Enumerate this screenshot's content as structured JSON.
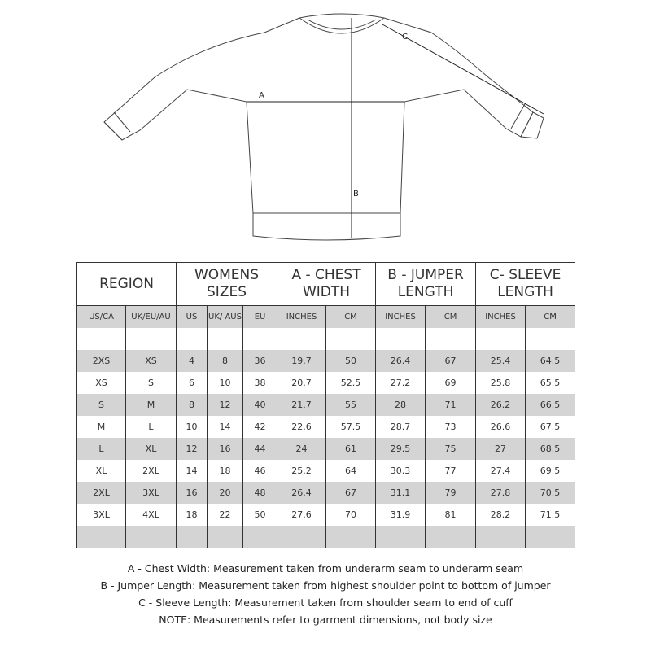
{
  "diagram": {
    "labels": {
      "a": "A",
      "b": "B",
      "c": "C"
    }
  },
  "table": {
    "groups": [
      "REGION",
      "WOMENS SIZES",
      "A - CHEST WIDTH",
      "B - JUMPER LENGTH",
      "C- SLEEVE LENGTH"
    ],
    "subheaders": [
      "US/CA",
      "UK/EU/AU",
      "US",
      "UK/ AUS",
      "EU",
      "INCHES",
      "CM",
      "INCHES",
      "CM",
      "INCHES",
      "CM"
    ],
    "rows": [
      [
        "2XS",
        "XS",
        "4",
        "8",
        "36",
        "19.7",
        "50",
        "26.4",
        "67",
        "25.4",
        "64.5"
      ],
      [
        "XS",
        "S",
        "6",
        "10",
        "38",
        "20.7",
        "52.5",
        "27.2",
        "69",
        "25.8",
        "65.5"
      ],
      [
        "S",
        "M",
        "8",
        "12",
        "40",
        "21.7",
        "55",
        "28",
        "71",
        "26.2",
        "66.5"
      ],
      [
        "M",
        "L",
        "10",
        "14",
        "42",
        "22.6",
        "57.5",
        "28.7",
        "73",
        "26.6",
        "67.5"
      ],
      [
        "L",
        "XL",
        "12",
        "16",
        "44",
        "24",
        "61",
        "29.5",
        "75",
        "27",
        "68.5"
      ],
      [
        "XL",
        "2XL",
        "14",
        "18",
        "46",
        "25.2",
        "64",
        "30.3",
        "77",
        "27.4",
        "69.5"
      ],
      [
        "2XL",
        "3XL",
        "16",
        "20",
        "48",
        "26.4",
        "67",
        "31.1",
        "79",
        "27.8",
        "70.5"
      ],
      [
        "3XL",
        "4XL",
        "18",
        "22",
        "50",
        "27.6",
        "70",
        "31.9",
        "81",
        "28.2",
        "71.5"
      ]
    ]
  },
  "notes": [
    "A - Chest Width: Measurement taken from underarm seam to underarm seam",
    "B - Jumper Length: Measurement taken from highest shoulder point to bottom of jumper",
    "C - Sleeve Length: Measurement taken from shoulder seam to end of cuff",
    "NOTE: Measurements refer to garment dimensions, not body size"
  ]
}
